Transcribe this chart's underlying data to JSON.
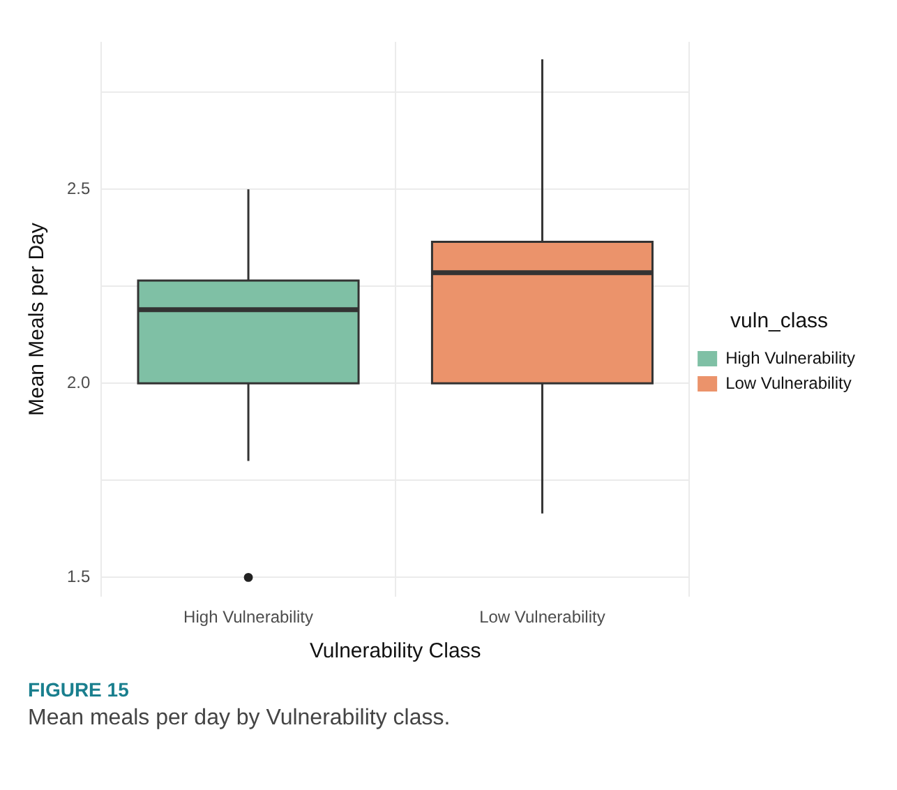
{
  "chart_data": {
    "type": "box",
    "xlabel": "Vulnerability Class",
    "ylabel": "Mean Meals per Day",
    "legend_title": "vuln_class",
    "legend": "right",
    "grid": true,
    "categories": [
      "High Vulnerability",
      "Low Vulnerability"
    ],
    "series": [
      {
        "name": "High Vulnerability",
        "color": "#7fc0a5",
        "boxes": [
          {
            "low": 1.8,
            "q1": 2.0,
            "median": 2.19,
            "q3": 2.265,
            "high": 2.5,
            "outliers": [
              1.5
            ]
          },
          null
        ]
      },
      {
        "name": "Low Vulnerability",
        "color": "#eb936b",
        "boxes": [
          null,
          {
            "low": 1.665,
            "q1": 2.0,
            "median": 2.285,
            "q3": 2.365,
            "high": 2.835
          }
        ]
      }
    ],
    "ylim": [
      1.45,
      2.88
    ],
    "yticks": [
      1.5,
      {
        "value": 1.75,
        "label": null
      },
      {
        "value": 2,
        "label": "2.0"
      },
      {
        "value": 2.25,
        "label": null
      },
      2.5,
      {
        "value": 2.75,
        "label": null
      }
    ],
    "annotations": [
      "FIGURE 15",
      "Mean meals per day by Vulnerability class."
    ]
  }
}
